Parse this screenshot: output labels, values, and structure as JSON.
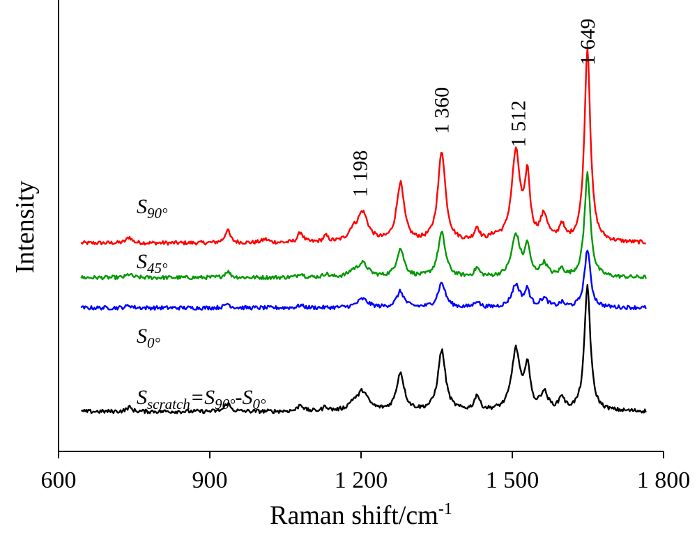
{
  "chart_data": {
    "type": "line",
    "xlabel": "Raman shift/cm",
    "xlabel_sup": "-1",
    "ylabel": "Intensity",
    "xlim": [
      600,
      1800
    ],
    "xticks": [
      600,
      900,
      1200,
      1500,
      1800
    ],
    "xtick_labels": [
      "600",
      "900",
      "1 200",
      "1 500",
      "1 800"
    ],
    "grid": false,
    "peak_labels": [
      {
        "x": 1198,
        "text": "1 198"
      },
      {
        "x": 1360,
        "text": "1 360"
      },
      {
        "x": 1512,
        "text": "1 512"
      },
      {
        "x": 1649,
        "text": "1 649"
      }
    ],
    "series": [
      {
        "color": "#ff0000",
        "label_main": "S",
        "label_sub": "90°",
        "baseline": 0.45,
        "peaks": [
          [
            740,
            0.014,
            6
          ],
          [
            935,
            0.03,
            6
          ],
          [
            1010,
            0.008,
            8
          ],
          [
            1080,
            0.024,
            6
          ],
          [
            1130,
            0.014,
            6
          ],
          [
            1183,
            0.02,
            9
          ],
          [
            1203,
            0.068,
            13
          ],
          [
            1278,
            0.136,
            9
          ],
          [
            1360,
            0.21,
            9
          ],
          [
            1430,
            0.03,
            6
          ],
          [
            1465,
            0.01,
            12
          ],
          [
            1507,
            0.205,
            10
          ],
          [
            1530,
            0.142,
            6
          ],
          [
            1563,
            0.058,
            9
          ],
          [
            1598,
            0.036,
            6
          ],
          [
            1649,
            0.45,
            7
          ]
        ]
      },
      {
        "color": "#009900",
        "label_main": "S",
        "label_sub": "45°",
        "baseline": 0.37,
        "peaks": [
          [
            740,
            0.008,
            6
          ],
          [
            935,
            0.015,
            6
          ],
          [
            1080,
            0.01,
            6
          ],
          [
            1130,
            0.008,
            6
          ],
          [
            1183,
            0.01,
            9
          ],
          [
            1203,
            0.032,
            13
          ],
          [
            1278,
            0.065,
            9
          ],
          [
            1360,
            0.102,
            9
          ],
          [
            1430,
            0.02,
            6
          ],
          [
            1507,
            0.097,
            10
          ],
          [
            1530,
            0.068,
            6
          ],
          [
            1563,
            0.03,
            9
          ],
          [
            1598,
            0.017,
            6
          ],
          [
            1649,
            0.24,
            7
          ]
        ]
      },
      {
        "color": "#0000ff",
        "label_main": "S",
        "label_sub": "0°",
        "baseline": 0.3,
        "peaks": [
          [
            740,
            0.006,
            6
          ],
          [
            935,
            0.01,
            6
          ],
          [
            1080,
            0.006,
            6
          ],
          [
            1203,
            0.02,
            13
          ],
          [
            1278,
            0.037,
            9
          ],
          [
            1360,
            0.057,
            9
          ],
          [
            1430,
            0.015,
            6
          ],
          [
            1507,
            0.052,
            10
          ],
          [
            1530,
            0.038,
            6
          ],
          [
            1563,
            0.02,
            9
          ],
          [
            1598,
            0.01,
            6
          ],
          [
            1649,
            0.135,
            7
          ]
        ]
      },
      {
        "color": "#000000",
        "label_main": "S",
        "label_sub": "scratch",
        "label_rest": "=S",
        "label_sub2": "90°",
        "label_rest2": "-S",
        "label_sub3": "0°",
        "baseline": 0.06,
        "peaks": [
          [
            740,
            0.01,
            6
          ],
          [
            935,
            0.02,
            6
          ],
          [
            1080,
            0.016,
            6
          ],
          [
            1130,
            0.01,
            6
          ],
          [
            1183,
            0.014,
            9
          ],
          [
            1203,
            0.045,
            13
          ],
          [
            1278,
            0.088,
            9
          ],
          [
            1360,
            0.14,
            9
          ],
          [
            1430,
            0.035,
            6
          ],
          [
            1507,
            0.14,
            10
          ],
          [
            1530,
            0.1,
            6
          ],
          [
            1563,
            0.04,
            9
          ],
          [
            1598,
            0.03,
            6
          ],
          [
            1649,
            0.29,
            7
          ]
        ]
      }
    ],
    "x_start": 645,
    "x_end": 1765
  }
}
